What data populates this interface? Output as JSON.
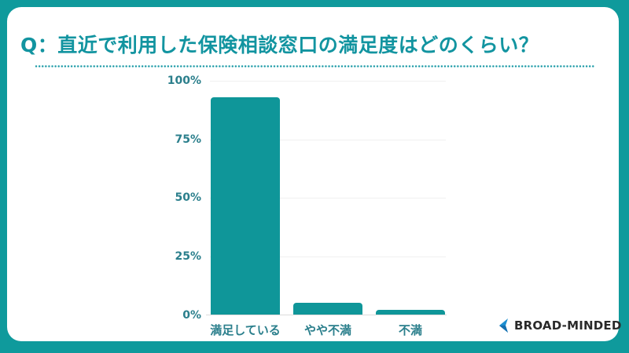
{
  "title": "Q：直近で利用した保険相談窓口の満足度はどのくらい？",
  "brand": {
    "name": "BROAD-MINDED",
    "icon": "chevron-left-logo-icon",
    "colors": {
      "frame": "#0f9a9c",
      "bar": "#0f9699",
      "title": "#1294a0",
      "axis_text": "#2b7f8c",
      "logo_icon": "#1e8fd1"
    }
  },
  "chart_data": {
    "type": "bar",
    "title": "Q：直近で利用した保険相談窓口の満足度はどのくらい？",
    "categories": [
      "満足している",
      "やや不満",
      "不満"
    ],
    "values": [
      93,
      5,
      2
    ],
    "xlabel": "",
    "ylabel": "",
    "ylim": [
      0,
      100
    ],
    "yticks": [
      "0%",
      "25%",
      "50%",
      "75%",
      "100%"
    ],
    "grid": true,
    "legend": "none"
  }
}
